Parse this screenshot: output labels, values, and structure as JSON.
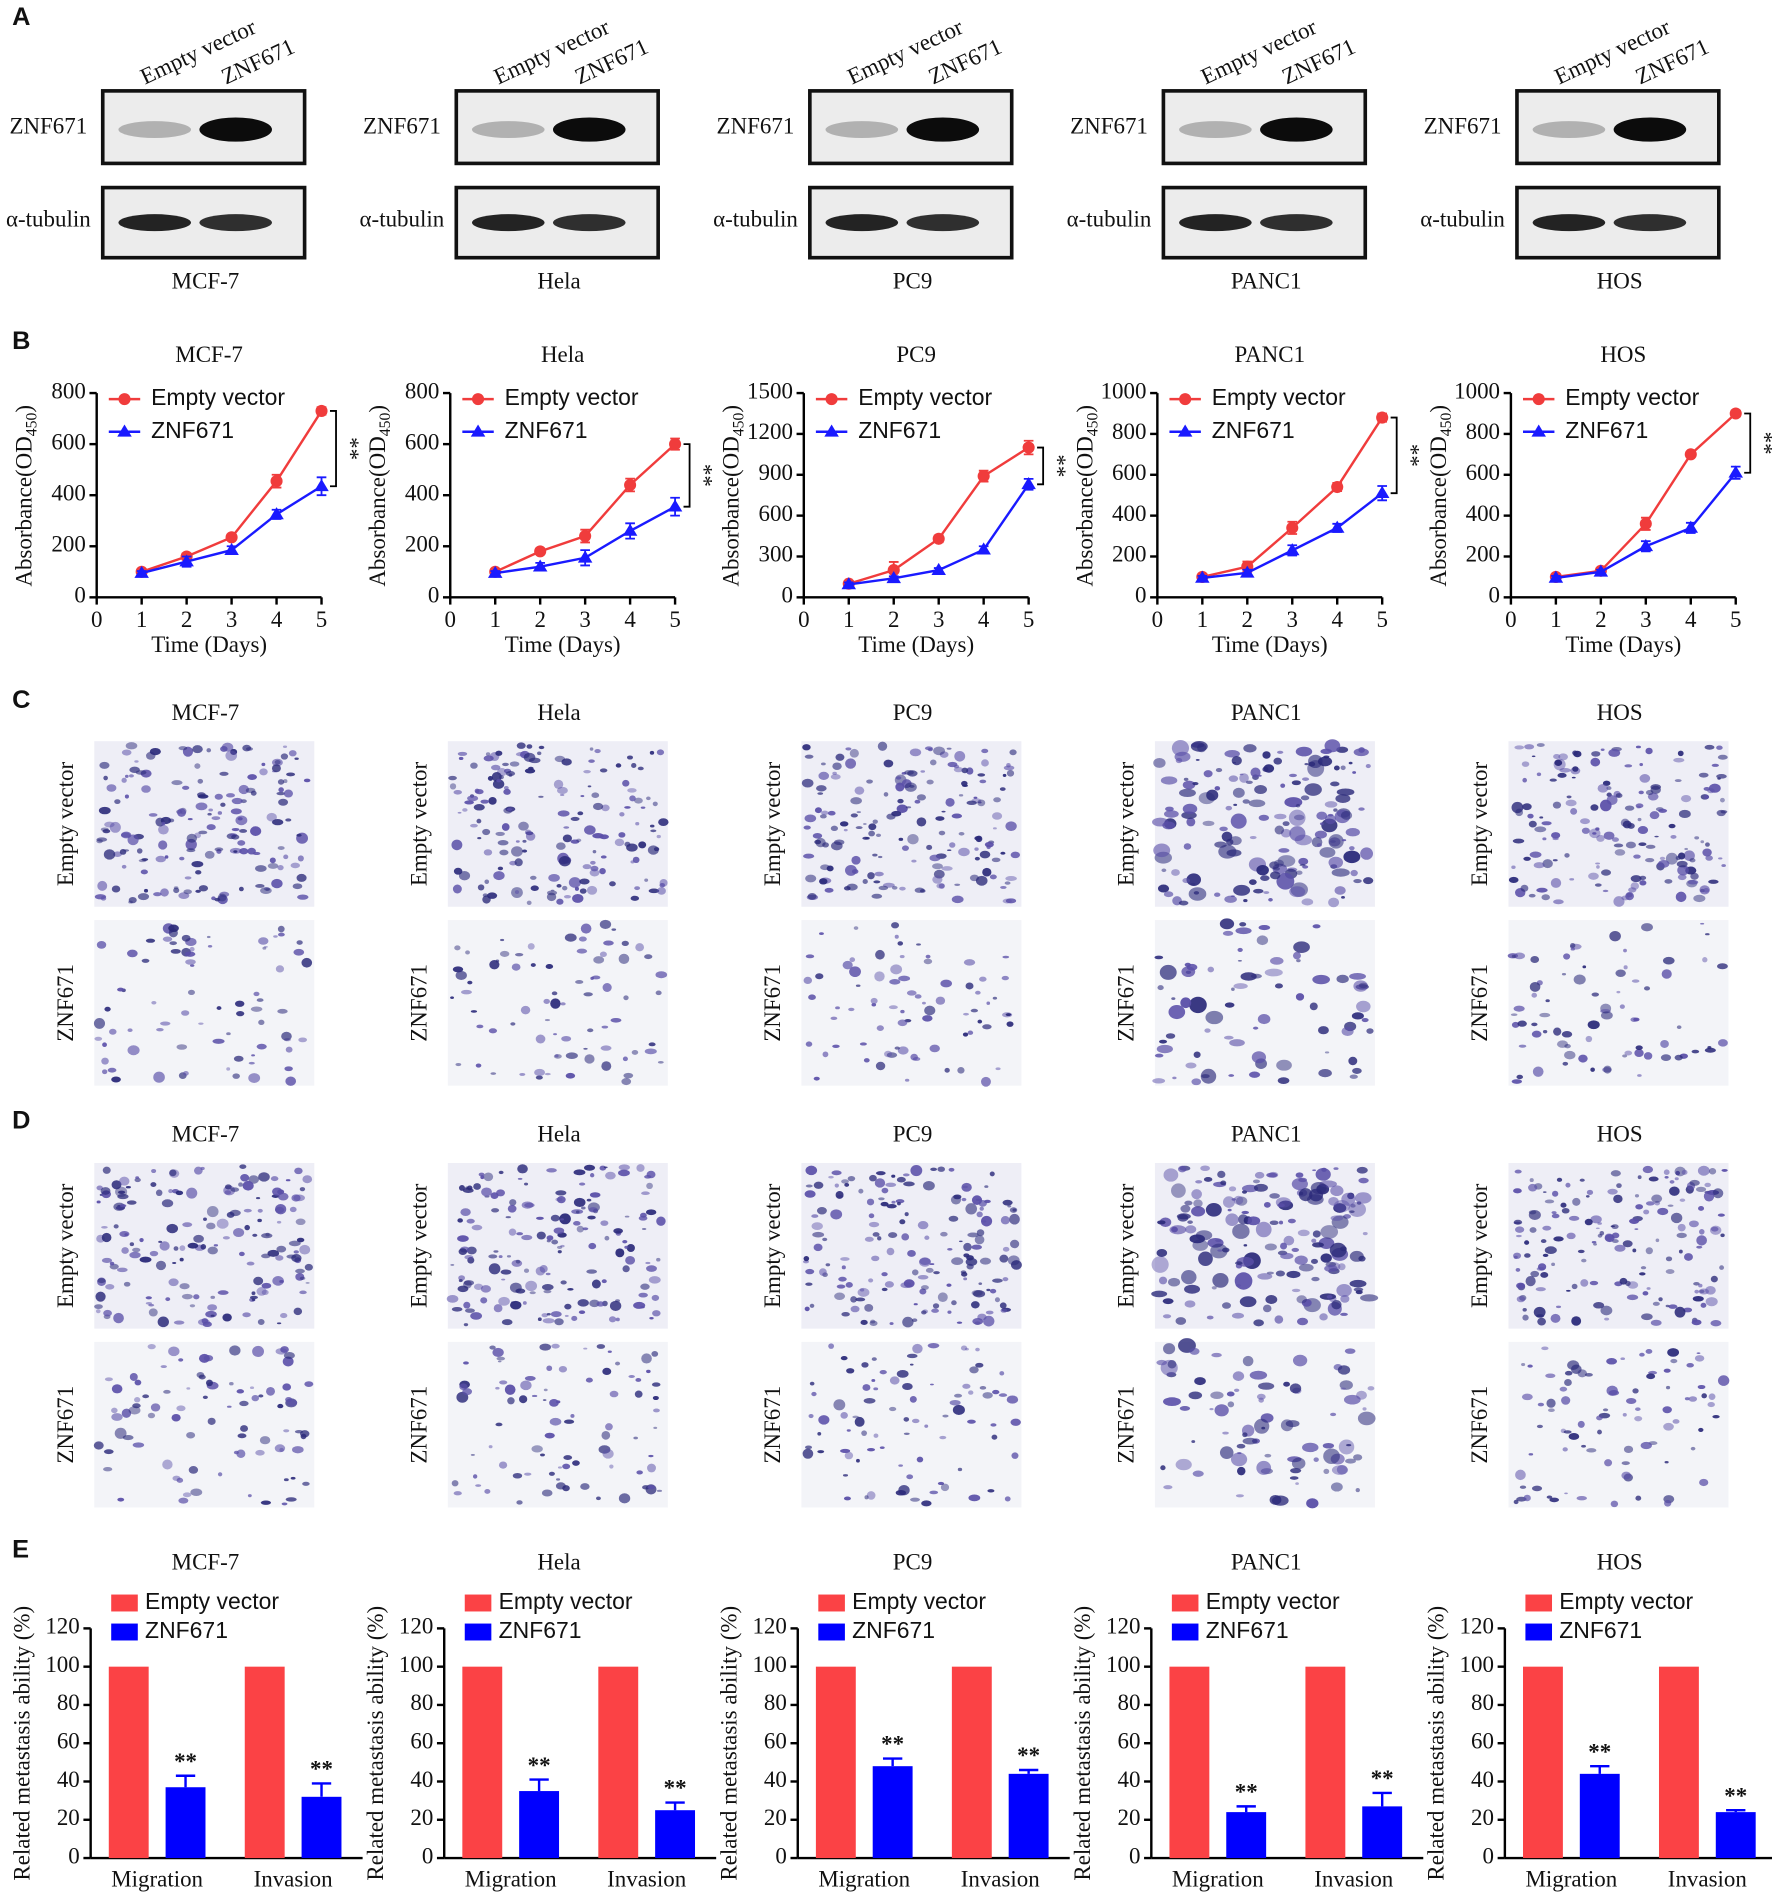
{
  "panel_labels": [
    "A",
    "B",
    "C",
    "D",
    "E"
  ],
  "cell_lines": [
    "MCF-7",
    "Hela",
    "PC9",
    "PANC1",
    "HOS"
  ],
  "groups": [
    "Empty vector",
    "ZNF671"
  ],
  "blot_rows": [
    "ZNF671",
    "α-tubulin"
  ],
  "chart_data": [
    {
      "type": "line",
      "title": "MCF-7",
      "x": [
        1,
        2,
        3,
        4,
        5
      ],
      "xlim": [
        0,
        5
      ],
      "xticks": [
        0,
        1,
        2,
        3,
        4,
        5
      ],
      "ylim": [
        0,
        800
      ],
      "yticks": [
        0,
        200,
        400,
        600,
        800
      ],
      "x_label": "Time (Days)",
      "y_label": "Absorbance(OD",
      "y_label_subscript": "450",
      "y_label_suffix": ")",
      "annotation": "**",
      "legend": "upper left",
      "series": [
        {
          "name": "Empty vector",
          "color": "#f03c3c",
          "values": [
            100,
            160,
            235,
            455,
            730
          ],
          "errors": [
            8,
            12,
            10,
            25,
            15
          ]
        },
        {
          "name": "ZNF671",
          "color": "#1a1aff",
          "values": [
            95,
            140,
            185,
            325,
            435
          ],
          "errors": [
            8,
            20,
            15,
            18,
            35
          ]
        }
      ]
    },
    {
      "type": "line",
      "title": "Hela",
      "x": [
        1,
        2,
        3,
        4,
        5
      ],
      "xlim": [
        0,
        5
      ],
      "xticks": [
        0,
        1,
        2,
        3,
        4,
        5
      ],
      "ylim": [
        0,
        800
      ],
      "yticks": [
        0,
        200,
        400,
        600,
        800
      ],
      "x_label": "Time (Days)",
      "y_label": "Absorbance(OD",
      "y_label_subscript": "450",
      "y_label_suffix": ")",
      "annotation": "**",
      "legend": "upper left",
      "series": [
        {
          "name": "Empty vector",
          "color": "#f03c3c",
          "values": [
            100,
            180,
            240,
            440,
            600
          ],
          "errors": [
            8,
            10,
            25,
            25,
            22
          ]
        },
        {
          "name": "ZNF671",
          "color": "#1a1aff",
          "values": [
            95,
            120,
            155,
            260,
            355
          ],
          "errors": [
            8,
            15,
            30,
            30,
            35
          ]
        }
      ]
    },
    {
      "type": "line",
      "title": "PC9",
      "x": [
        1,
        2,
        3,
        4,
        5
      ],
      "xlim": [
        0,
        5
      ],
      "xticks": [
        0,
        1,
        2,
        3,
        4,
        5
      ],
      "ylim": [
        0,
        1500
      ],
      "yticks": [
        0,
        300,
        600,
        900,
        1200,
        1500
      ],
      "x_label": "Time (Days)",
      "y_label": "Absorbance(OD",
      "y_label_subscript": "450",
      "y_label_suffix": ")",
      "annotation": "**",
      "legend": "upper left",
      "series": [
        {
          "name": "Empty vector",
          "color": "#f03c3c",
          "values": [
            100,
            200,
            430,
            890,
            1100
          ],
          "errors": [
            15,
            60,
            25,
            40,
            50
          ]
        },
        {
          "name": "ZNF671",
          "color": "#1a1aff",
          "values": [
            95,
            140,
            200,
            350,
            830
          ],
          "errors": [
            15,
            15,
            15,
            25,
            40
          ]
        }
      ]
    },
    {
      "type": "line",
      "title": "PANC1",
      "x": [
        1,
        2,
        3,
        4,
        5
      ],
      "xlim": [
        0,
        5
      ],
      "xticks": [
        0,
        1,
        2,
        3,
        4,
        5
      ],
      "ylim": [
        0,
        1000
      ],
      "yticks": [
        0,
        200,
        400,
        600,
        800,
        1000
      ],
      "x_label": "Time (Days)",
      "y_label": "Absorbance(OD",
      "y_label_subscript": "450",
      "y_label_suffix": ")",
      "annotation": "**",
      "legend": "upper left",
      "series": [
        {
          "name": "Empty vector",
          "color": "#f03c3c",
          "values": [
            100,
            150,
            340,
            540,
            880
          ],
          "errors": [
            10,
            25,
            30,
            20,
            20
          ]
        },
        {
          "name": "ZNF671",
          "color": "#1a1aff",
          "values": [
            95,
            120,
            230,
            340,
            510
          ],
          "errors": [
            10,
            15,
            25,
            20,
            35
          ]
        }
      ]
    },
    {
      "type": "line",
      "title": "HOS",
      "x": [
        1,
        2,
        3,
        4,
        5
      ],
      "xlim": [
        0,
        5
      ],
      "xticks": [
        0,
        1,
        2,
        3,
        4,
        5
      ],
      "ylim": [
        0,
        1000
      ],
      "yticks": [
        0,
        200,
        400,
        600,
        800,
        1000
      ],
      "x_label": "Time (Days)",
      "y_label": "Absorbance(OD",
      "y_label_subscript": "450",
      "y_label_suffix": ")",
      "annotation": "**",
      "legend": "upper left",
      "series": [
        {
          "name": "Empty vector",
          "color": "#f03c3c",
          "values": [
            100,
            130,
            360,
            700,
            900
          ],
          "errors": [
            10,
            10,
            30,
            10,
            15
          ]
        },
        {
          "name": "ZNF671",
          "color": "#1a1aff",
          "values": [
            95,
            125,
            250,
            340,
            610
          ],
          "errors": [
            10,
            10,
            25,
            25,
            30
          ]
        }
      ]
    },
    {
      "type": "bar",
      "title": "MCF-7",
      "categories": [
        "Migration",
        "Invasion"
      ],
      "ylim": [
        0,
        120
      ],
      "yticks": [
        0,
        20,
        40,
        60,
        80,
        100,
        120
      ],
      "y_label": "Related metastasis ability (%)",
      "annotation": "**",
      "legend": "upper left",
      "series": [
        {
          "name": "Empty vector",
          "color": "#fb4245",
          "values": [
            100,
            100
          ]
        },
        {
          "name": "ZNF671",
          "color": "#0000ff",
          "values": [
            37,
            32
          ],
          "errors": [
            6,
            7
          ]
        }
      ]
    },
    {
      "type": "bar",
      "title": "Hela",
      "categories": [
        "Migration",
        "Invasion"
      ],
      "ylim": [
        0,
        120
      ],
      "yticks": [
        0,
        20,
        40,
        60,
        80,
        100,
        120
      ],
      "y_label": "Related metastasis ability (%)",
      "annotation": "**",
      "legend": "upper left",
      "series": [
        {
          "name": "Empty vector",
          "color": "#fb4245",
          "values": [
            100,
            100
          ]
        },
        {
          "name": "ZNF671",
          "color": "#0000ff",
          "values": [
            35,
            25
          ],
          "errors": [
            6,
            4
          ]
        }
      ]
    },
    {
      "type": "bar",
      "title": "PC9",
      "categories": [
        "Migration",
        "Invasion"
      ],
      "ylim": [
        0,
        120
      ],
      "yticks": [
        0,
        20,
        40,
        60,
        80,
        100,
        120
      ],
      "y_label": "Related metastasis ability (%)",
      "annotation": "**",
      "legend": "upper left",
      "series": [
        {
          "name": "Empty vector",
          "color": "#fb4245",
          "values": [
            100,
            100
          ]
        },
        {
          "name": "ZNF671",
          "color": "#0000ff",
          "values": [
            48,
            44
          ],
          "errors": [
            4,
            2
          ]
        }
      ]
    },
    {
      "type": "bar",
      "title": "PANC1",
      "categories": [
        "Migration",
        "Invasion"
      ],
      "ylim": [
        0,
        120
      ],
      "yticks": [
        0,
        20,
        40,
        60,
        80,
        100,
        120
      ],
      "y_label": "Related metastasis ability (%)",
      "annotation": "**",
      "legend": "upper left",
      "series": [
        {
          "name": "Empty vector",
          "color": "#fb4245",
          "values": [
            100,
            100
          ]
        },
        {
          "name": "ZNF671",
          "color": "#0000ff",
          "values": [
            24,
            27
          ],
          "errors": [
            3,
            7
          ]
        }
      ]
    },
    {
      "type": "bar",
      "title": "HOS",
      "categories": [
        "Migration",
        "Invasion"
      ],
      "ylim": [
        0,
        120
      ],
      "yticks": [
        0,
        20,
        40,
        60,
        80,
        100,
        120
      ],
      "y_label": "Related metastasis ability (%)",
      "annotation": "**",
      "legend": "upper left",
      "series": [
        {
          "name": "Empty vector",
          "color": "#fb4245",
          "values": [
            100,
            100
          ]
        },
        {
          "name": "ZNF671",
          "color": "#0000ff",
          "values": [
            44,
            24
          ],
          "errors": [
            4,
            1
          ]
        }
      ]
    }
  ]
}
